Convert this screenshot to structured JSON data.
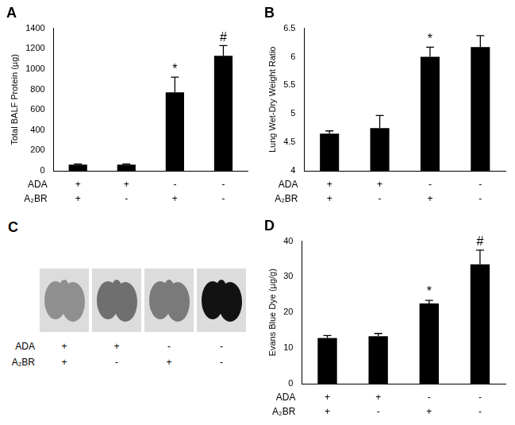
{
  "chart_data": [
    {
      "type": "bar",
      "title": "A",
      "ylabel": "Total BALF Protein (µg)",
      "categories": [
        [
          "+",
          "+"
        ],
        [
          "+",
          "-"
        ],
        [
          "-",
          "+"
        ],
        [
          "-",
          "-"
        ]
      ],
      "x_label_rows": [
        "ADA",
        "A₂BR"
      ],
      "values": [
        60,
        60,
        770,
        1130
      ],
      "errors": [
        8,
        8,
        150,
        100
      ],
      "annotations": [
        null,
        null,
        "*",
        "#"
      ],
      "color": "#000000",
      "ylim": [
        0,
        1400
      ],
      "yticks": [
        0,
        200,
        400,
        600,
        800,
        1000,
        1200,
        1400
      ],
      "grid": false
    },
    {
      "type": "bar",
      "title": "B",
      "ylabel": "Lung Wet-Dry Weight Ratio",
      "categories": [
        [
          "+",
          "+"
        ],
        [
          "+",
          "-"
        ],
        [
          "-",
          "+"
        ],
        [
          "-",
          "-"
        ]
      ],
      "x_label_rows": [
        "ADA",
        "A₂BR"
      ],
      "values": [
        4.65,
        4.75,
        6.0,
        6.17
      ],
      "errors": [
        0.05,
        0.22,
        0.17,
        0.2
      ],
      "annotations": [
        null,
        null,
        "*",
        null
      ],
      "color": "#000000",
      "ylim": [
        4,
        6.5
      ],
      "yticks": [
        4,
        4.5,
        5,
        5.5,
        6,
        6.5
      ],
      "grid": false
    },
    {
      "type": "bar",
      "title": "D",
      "ylabel": "Evans Blue Dye (µg/g)",
      "categories": [
        [
          "+",
          "+"
        ],
        [
          "+",
          "-"
        ],
        [
          "-",
          "+"
        ],
        [
          "-",
          "-"
        ]
      ],
      "x_label_rows": [
        "ADA",
        "A₂BR"
      ],
      "values": [
        12.8,
        13.3,
        22.5,
        33.5
      ],
      "errors": [
        0.7,
        0.8,
        0.9,
        4.0
      ],
      "annotations": [
        null,
        null,
        "*",
        "#"
      ],
      "color": "#000000",
      "ylim": [
        0,
        40
      ],
      "yticks": [
        0,
        10,
        20,
        30,
        40
      ],
      "grid": false
    }
  ],
  "image_panel": {
    "title": "C",
    "categories": [
      [
        "+",
        "+"
      ],
      [
        "+",
        "-"
      ],
      [
        "-",
        "+"
      ],
      [
        "-",
        "-"
      ]
    ],
    "x_label_rows": [
      "ADA",
      "A₂BR"
    ]
  }
}
